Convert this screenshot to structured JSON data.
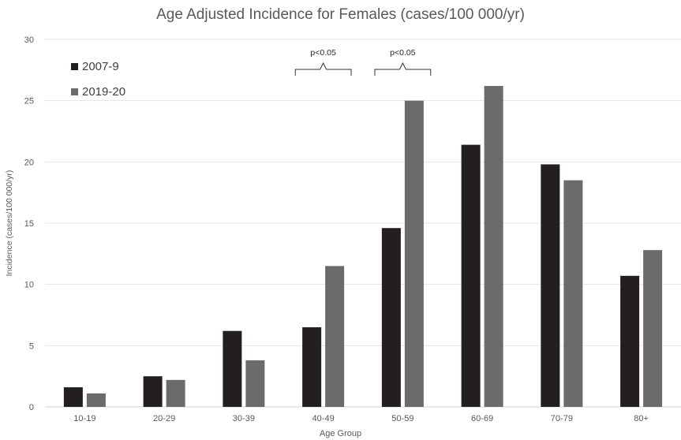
{
  "chart_data": {
    "type": "bar",
    "title": "Age Adjusted Incidence for Females (cases/100 000/yr)",
    "xlabel": "Age Group",
    "ylabel": "Incidence (cases/100 000/yr)",
    "ylim": [
      0,
      30
    ],
    "yticks": [
      0,
      5,
      10,
      15,
      20,
      25,
      30
    ],
    "categories": [
      "10-19",
      "20-29",
      "30-39",
      "40-49",
      "50-59",
      "60-69",
      "70-79",
      "80+"
    ],
    "series": [
      {
        "name": "2007-9",
        "color": "#231f20",
        "values": [
          1.6,
          2.5,
          6.2,
          6.5,
          14.6,
          21.4,
          19.8,
          10.7
        ]
      },
      {
        "name": "2019-20",
        "color": "#6b6b6e",
        "values": [
          1.1,
          2.2,
          3.8,
          11.5,
          25.0,
          26.2,
          18.5,
          12.8
        ]
      }
    ],
    "grid": true,
    "legend_position": "top-left",
    "annotations": [
      {
        "text": "p<0.05",
        "category": "40-49"
      },
      {
        "text": "p<0.05",
        "category": "50-59"
      }
    ]
  }
}
